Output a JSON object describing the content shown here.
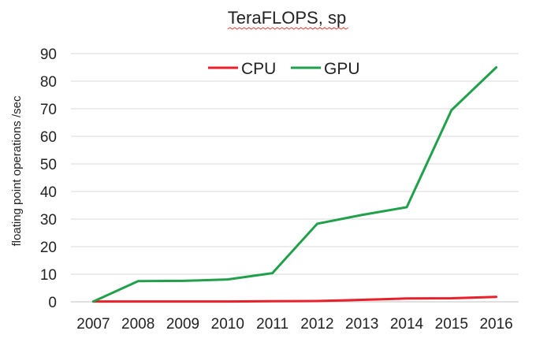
{
  "chart_data": {
    "type": "line",
    "title": "TeraFLOPS,  sp",
    "xlabel": "",
    "ylabel": "floating point operations /sec",
    "categories": [
      "2007",
      "2008",
      "2009",
      "2010",
      "2011",
      "2012",
      "2013",
      "2014",
      "2015",
      "2016"
    ],
    "ylim": [
      0,
      90
    ],
    "yticks": [
      0,
      10,
      20,
      30,
      40,
      50,
      60,
      70,
      80,
      90
    ],
    "grid": true,
    "legend": "top-center",
    "series": [
      {
        "name": "CPU",
        "color": "#e8202a",
        "values": [
          0.1,
          0.1,
          0.1,
          0.1,
          0.2,
          0.3,
          0.7,
          1.2,
          1.3,
          1.8
        ]
      },
      {
        "name": "GPU",
        "color": "#21a04c",
        "values": [
          0.1,
          7.5,
          7.6,
          8.1,
          10.4,
          28.3,
          31.5,
          34.3,
          69.5,
          85.0
        ]
      }
    ]
  }
}
